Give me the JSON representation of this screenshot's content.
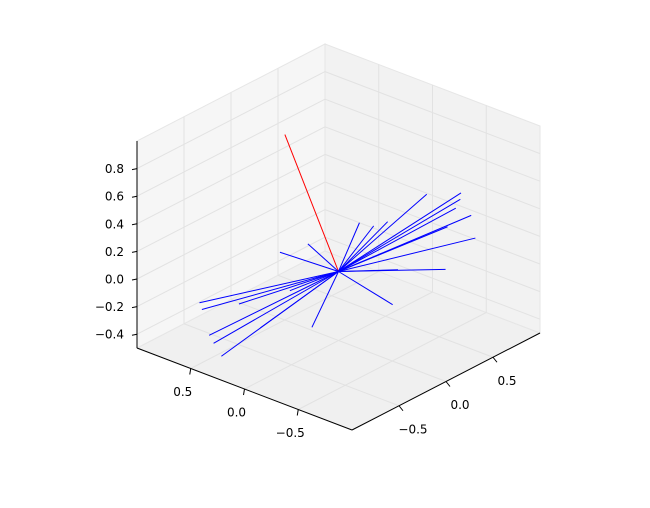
{
  "chart_data": {
    "type": "line3d",
    "xlim": [
      -1,
      1
    ],
    "ylim": [
      -1,
      1
    ],
    "zlim": [
      -0.5,
      1.0
    ],
    "xticks": [
      {
        "value": -0.5,
        "label": "−0.5"
      },
      {
        "value": 0,
        "label": "0.0"
      },
      0.5
    ],
    "yticks": [
      {
        "value": -0.5,
        "label": "−0.5"
      },
      {
        "value": 0,
        "label": "0.0"
      },
      0.5
    ],
    "zticks": [
      {
        "value": -0.4,
        "label": "−0.4"
      },
      {
        "value": -0.2,
        "label": "−0.2"
      },
      {
        "value": 0,
        "label": "0.0"
      },
      0.2,
      0.4,
      0.6,
      0.8
    ],
    "grid": true,
    "origin": {
      "x": 0,
      "y": 0,
      "z": 0
    },
    "series": [
      {
        "color": "#ff0000",
        "x": [
          -0.01
        ],
        "y": [
          0.49
        ],
        "z": [
          0.85
        ]
      },
      {
        "color": "#0000ff",
        "x": [
          0.71,
          0.88,
          0.85,
          0.84,
          0.77,
          0.79,
          0.68,
          0.51,
          0.29,
          0.13,
          0.42,
          0.28,
          0.34,
          -0.77,
          -0.79,
          -0.85,
          -0.86,
          -0.88,
          -0.58,
          -0.34,
          -0.2,
          -0.04,
          -0.3,
          -0.59
        ],
        "y": [
          -0.2,
          -0.37,
          -0.39,
          -0.5,
          -0.6,
          -0.4,
          -0.42,
          -0.55,
          -0.3,
          -0.39,
          -0.09,
          0.05,
          -0.03,
          0.62,
          0.58,
          0.46,
          0.41,
          0.32,
          0.22,
          -0.05,
          0.37,
          0.25,
          0.19,
          0.41
        ],
        "z": [
          0.37,
          0.37,
          0.34,
          0.26,
          0.15,
          0.3,
          0.21,
          0,
          0,
          -0.17,
          0.24,
          0.24,
          0.22,
          -0.14,
          -0.17,
          -0.3,
          -0.34,
          -0.4,
          -0.27,
          -0.27,
          0.1,
          0.14,
          -0.09,
          -0.15
        ]
      }
    ]
  }
}
